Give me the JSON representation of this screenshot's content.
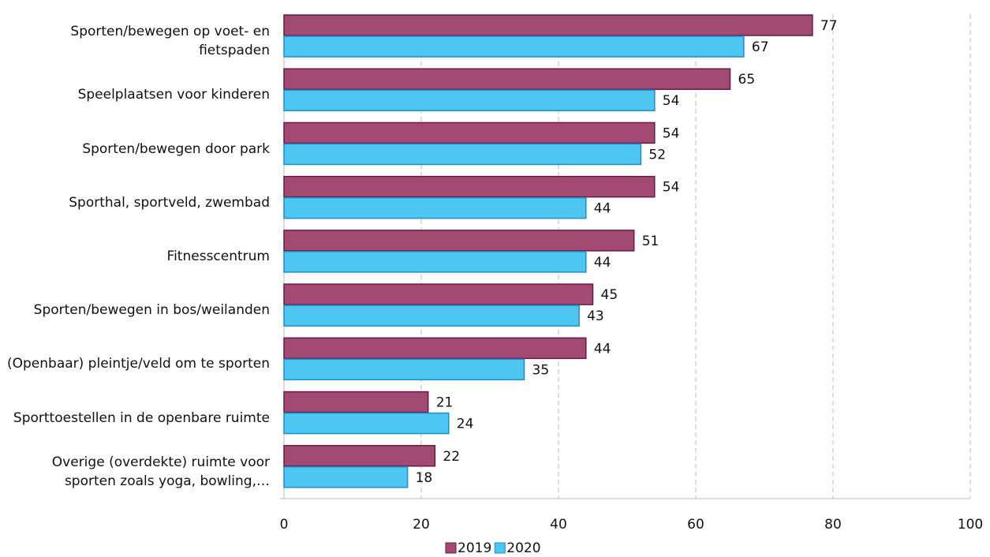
{
  "chart_data": {
    "type": "barh",
    "categories": [
      "Sporten/bewegen op voet- en fietspaden",
      "Speelplaatsen voor kinderen",
      "Sporten/bewegen door park",
      "Sporthal, sportveld, zwembad",
      "Fitnesscentrum",
      "Sporten/bewegen in bos/weilanden",
      "(Openbaar) pleintje/veld om te sporten",
      "Sporttoestellen in de openbare ruimte",
      "Overige (overdekte) ruimte voor sporten zoals yoga, bowling,…"
    ],
    "series": [
      {
        "name": "2019",
        "color": "#a34a73",
        "values": [
          77,
          65,
          54,
          54,
          51,
          45,
          44,
          21,
          22
        ]
      },
      {
        "name": "2020",
        "color": "#4dc6f2",
        "values": [
          67,
          54,
          52,
          44,
          44,
          43,
          35,
          24,
          18
        ]
      }
    ],
    "xlim": [
      0,
      100
    ],
    "xticks": [
      0,
      20,
      40,
      60,
      80,
      100
    ],
    "grid": true,
    "legend": "bottom"
  }
}
